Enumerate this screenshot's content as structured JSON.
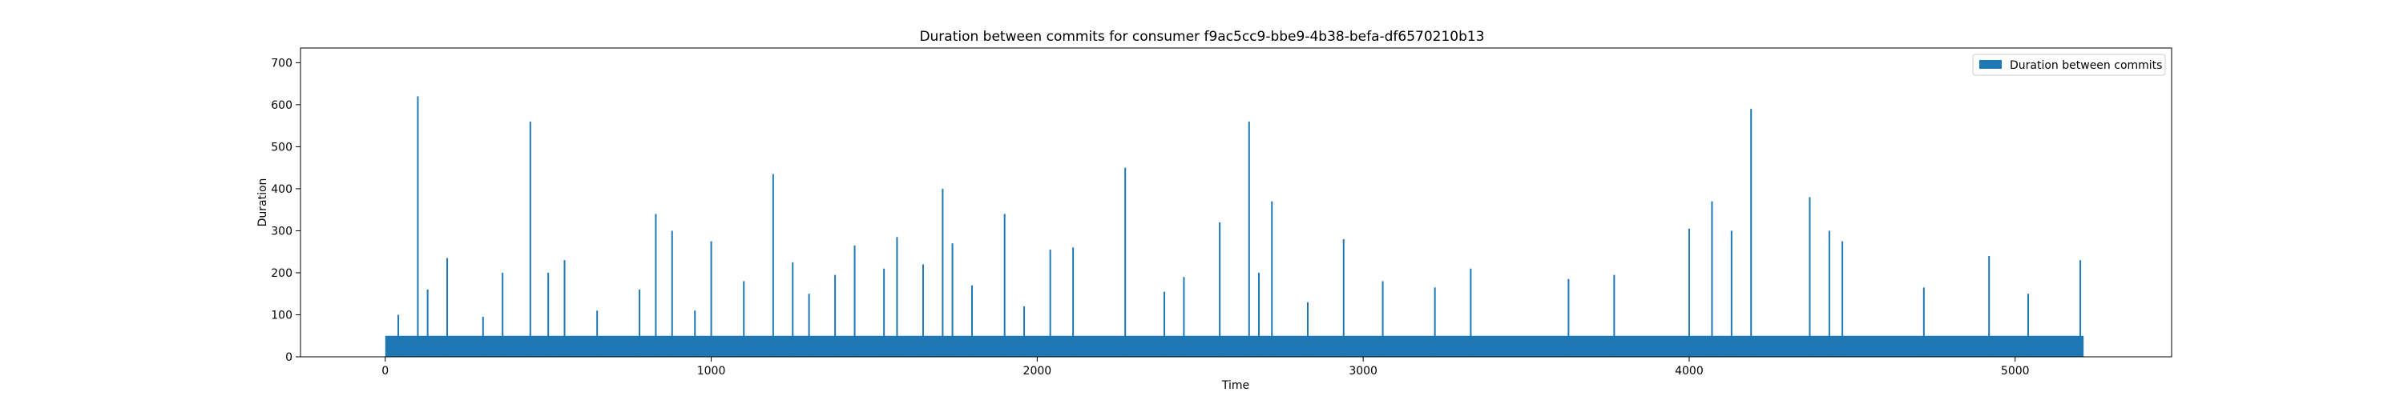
{
  "chart_data": {
    "type": "bar",
    "title": "Duration between commits for consumer f9ac5cc9-bbe9-4b38-befa-df6570210b13",
    "xlabel": "Time",
    "ylabel": "Duration",
    "xlim": [
      -260,
      5480
    ],
    "ylim": [
      0,
      735
    ],
    "xticks": [
      0,
      1000,
      2000,
      3000,
      4000,
      5000
    ],
    "yticks": [
      0,
      100,
      200,
      300,
      400,
      500,
      600,
      700
    ],
    "grid": false,
    "legend_position": "upper right",
    "series": [
      {
        "name": "Duration between commits",
        "color": "#1f77b4",
        "x_range": [
          0,
          5210
        ],
        "baseline": 50,
        "values": [
          [
            40,
            100
          ],
          [
            100,
            620
          ],
          [
            130,
            160
          ],
          [
            190,
            235
          ],
          [
            300,
            95
          ],
          [
            360,
            200
          ],
          [
            445,
            560
          ],
          [
            500,
            200
          ],
          [
            550,
            230
          ],
          [
            650,
            110
          ],
          [
            780,
            160
          ],
          [
            830,
            340
          ],
          [
            880,
            300
          ],
          [
            950,
            110
          ],
          [
            1000,
            275
          ],
          [
            1100,
            180
          ],
          [
            1190,
            435
          ],
          [
            1250,
            225
          ],
          [
            1300,
            150
          ],
          [
            1380,
            195
          ],
          [
            1440,
            265
          ],
          [
            1530,
            210
          ],
          [
            1570,
            285
          ],
          [
            1650,
            220
          ],
          [
            1710,
            400
          ],
          [
            1740,
            270
          ],
          [
            1800,
            170
          ],
          [
            1900,
            340
          ],
          [
            1960,
            120
          ],
          [
            2040,
            255
          ],
          [
            2110,
            260
          ],
          [
            2270,
            450
          ],
          [
            2390,
            155
          ],
          [
            2450,
            190
          ],
          [
            2560,
            320
          ],
          [
            2650,
            560
          ],
          [
            2680,
            200
          ],
          [
            2720,
            370
          ],
          [
            2830,
            130
          ],
          [
            2940,
            280
          ],
          [
            3060,
            180
          ],
          [
            3220,
            165
          ],
          [
            3330,
            210
          ],
          [
            3630,
            185
          ],
          [
            3770,
            195
          ],
          [
            4000,
            305
          ],
          [
            4070,
            370
          ],
          [
            4130,
            300
          ],
          [
            4190,
            590
          ],
          [
            4370,
            380
          ],
          [
            4430,
            300
          ],
          [
            4470,
            275
          ],
          [
            4720,
            165
          ],
          [
            4920,
            240
          ],
          [
            5040,
            150
          ],
          [
            5200,
            230
          ]
        ]
      }
    ]
  }
}
